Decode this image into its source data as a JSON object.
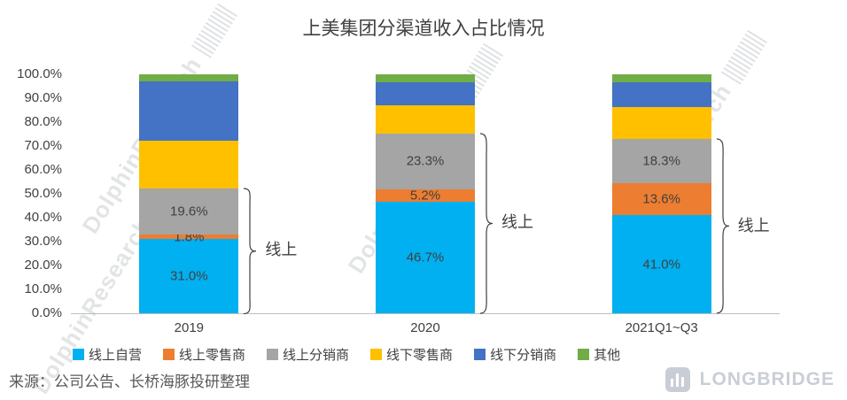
{
  "chart_data": {
    "type": "bar",
    "subtype": "stacked-100-percent",
    "title": "上美集团分渠道收入占比情况",
    "categories": [
      "2019",
      "2020",
      "2021Q1~Q3"
    ],
    "y_ticks": [
      "0.0%",
      "10.0%",
      "20.0%",
      "30.0%",
      "40.0%",
      "50.0%",
      "60.0%",
      "70.0%",
      "80.0%",
      "90.0%",
      "100.0%"
    ],
    "ylim": [
      0,
      100
    ],
    "grid": false,
    "legend_position": "bottom",
    "series": [
      {
        "name": "线上自营",
        "color": "#00B0F0",
        "values": [
          31.0,
          46.7,
          41.0
        ],
        "labels": [
          "31.0%",
          "46.7%",
          "41.0%"
        ]
      },
      {
        "name": "线上零售商",
        "color": "#ED7D31",
        "values": [
          1.8,
          5.2,
          13.6
        ],
        "labels": [
          "1.8%",
          "5.2%",
          "13.6%"
        ]
      },
      {
        "name": "线上分销商",
        "color": "#A5A5A5",
        "values": [
          19.6,
          23.3,
          18.3
        ],
        "labels": [
          "19.6%",
          "23.3%",
          "18.3%"
        ]
      },
      {
        "name": "线下零售商",
        "color": "#FFC000",
        "values": [
          19.8,
          11.8,
          13.5
        ]
      },
      {
        "name": "线下分销商",
        "color": "#4472C4",
        "values": [
          24.8,
          9.8,
          10.2
        ]
      },
      {
        "name": "其他",
        "color": "#70AD47",
        "values": [
          3.0,
          3.2,
          3.4
        ]
      }
    ],
    "annotation": {
      "label": "线上",
      "series_span": [
        0,
        1,
        2
      ]
    }
  },
  "watermark": {
    "text": "DolphinResearch"
  },
  "footer": {
    "source": "来源：公司公告、长桥海豚投研整理"
  },
  "logo": {
    "text": "LONGBRIDGE"
  }
}
